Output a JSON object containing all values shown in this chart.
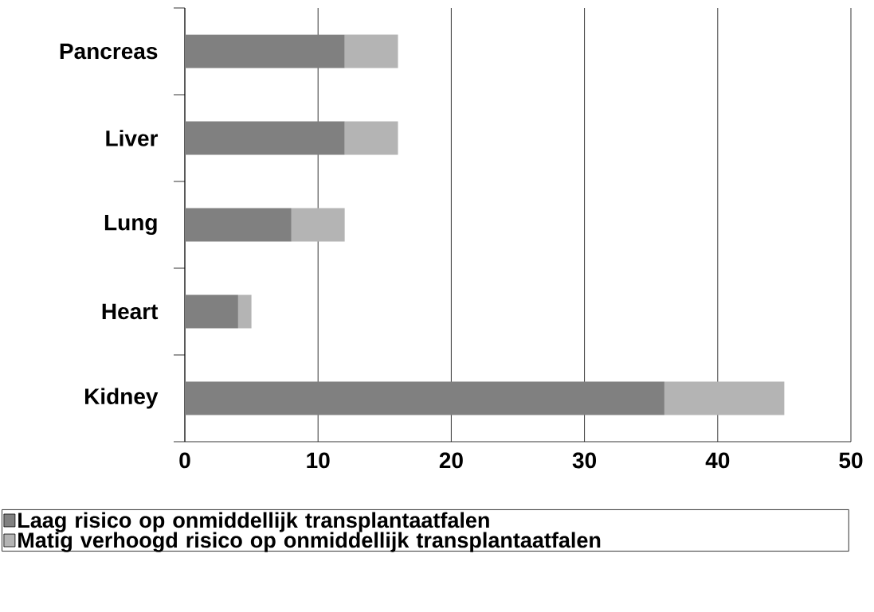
{
  "chart_data": {
    "type": "bar",
    "orientation": "horizontal",
    "stacked": true,
    "categories": [
      "Pancreas",
      "Liver",
      "Lung",
      "Heart",
      "Kidney"
    ],
    "series": [
      {
        "name": "Laag risico op onmiddellijk transplantaatfalen",
        "color": "#808080",
        "values": [
          12,
          12,
          8,
          4,
          36
        ]
      },
      {
        "name": "Matig verhoogd risico op onmiddellijk transplantaatfalen",
        "color": "#b4b4b4",
        "values": [
          4,
          4,
          4,
          1,
          9
        ]
      }
    ],
    "xlim": [
      0,
      50
    ],
    "xticks": [
      0,
      10,
      20,
      30,
      40,
      50
    ],
    "grid": "x",
    "legend": "bottom"
  }
}
